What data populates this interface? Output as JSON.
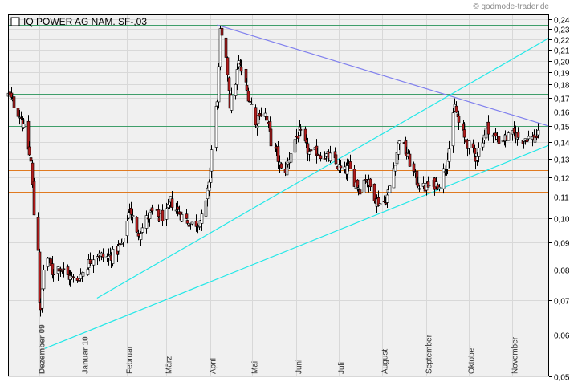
{
  "watermark": "© godmode-trader.de",
  "colors": {
    "background": "#ffffff",
    "plot_area": "#f0f0f0",
    "grid": "#d8d8d8",
    "candle_up": "#ffffff",
    "candle_down": "#b21c1c",
    "candle_outline": "#000000",
    "resistance_line": "#8080ee",
    "trend_line": "#22e8e8",
    "green_level": "#3f9e6a",
    "orange_level": "#e07a20"
  },
  "chart_data": {
    "type": "candlestick",
    "title": "IQ POWER AG NAM.   SF-,03",
    "y_scale": "log",
    "ylim": [
      0.05,
      0.245
    ],
    "y_ticks": [
      0.05,
      0.06,
      0.07,
      0.08,
      0.09,
      0.1,
      0.11,
      0.12,
      0.13,
      0.14,
      0.15,
      0.16,
      0.17,
      0.18,
      0.19,
      0.2,
      0.21,
      0.22,
      0.23,
      0.24
    ],
    "y_tick_labels": [
      "0,05",
      "0,06",
      "0,07",
      "0,08",
      "0,09",
      "0,10",
      "0,11",
      "0,12",
      "0,13",
      "0,14",
      "0,15",
      "0,16",
      "0,17",
      "0,18",
      "0,19",
      "0,20",
      "0,21",
      "0,22",
      "0,23",
      "0,24"
    ],
    "x_start": "2009-11-09",
    "x_end": "2010-11-27",
    "month_labels": [
      {
        "label": "Dezember 09",
        "date": "2009-12-01",
        "bold": true
      },
      {
        "label": "Januar 10",
        "date": "2010-01-01",
        "bold": true
      },
      {
        "label": "Februar",
        "date": "2010-02-01",
        "bold": false
      },
      {
        "label": "März",
        "date": "2010-03-01",
        "bold": false
      },
      {
        "label": "April",
        "date": "2010-04-01",
        "bold": false
      },
      {
        "label": "Mai",
        "date": "2010-05-01",
        "bold": false
      },
      {
        "label": "Juni",
        "date": "2010-06-01",
        "bold": false
      },
      {
        "label": "Juli",
        "date": "2010-07-01",
        "bold": false
      },
      {
        "label": "August",
        "date": "2010-08-01",
        "bold": false
      },
      {
        "label": "September",
        "date": "2010-09-01",
        "bold": false
      },
      {
        "label": "Oktober",
        "date": "2010-10-01",
        "bold": false
      },
      {
        "label": "November",
        "date": "2010-11-01",
        "bold": false
      }
    ],
    "close_path": [
      [
        "2009-11-09",
        0.172
      ],
      [
        "2009-11-13",
        0.165
      ],
      [
        "2009-11-18",
        0.156
      ],
      [
        "2009-11-22",
        0.14
      ],
      [
        "2009-11-25",
        0.128
      ],
      [
        "2009-11-27",
        0.102
      ],
      [
        "2009-11-30",
        0.088
      ],
      [
        "2009-12-01",
        0.07
      ],
      [
        "2009-12-02",
        0.066
      ],
      [
        "2009-12-04",
        0.08
      ],
      [
        "2009-12-07",
        0.084
      ],
      [
        "2009-12-10",
        0.079
      ],
      [
        "2009-12-15",
        0.081
      ],
      [
        "2009-12-20",
        0.078
      ],
      [
        "2009-12-27",
        0.076
      ],
      [
        "2010-01-03",
        0.081
      ],
      [
        "2010-01-10",
        0.086
      ],
      [
        "2010-01-17",
        0.084
      ],
      [
        "2010-01-24",
        0.086
      ],
      [
        "2010-01-29",
        0.09
      ],
      [
        "2010-02-01",
        0.1
      ],
      [
        "2010-02-03",
        0.105
      ],
      [
        "2010-02-06",
        0.098
      ],
      [
        "2010-02-08",
        0.093
      ],
      [
        "2010-02-12",
        0.096
      ],
      [
        "2010-02-16",
        0.101
      ],
      [
        "2010-02-20",
        0.103
      ],
      [
        "2010-02-24",
        0.1
      ],
      [
        "2010-03-01",
        0.102
      ],
      [
        "2010-03-04",
        0.108
      ],
      [
        "2010-03-08",
        0.104
      ],
      [
        "2010-03-12",
        0.101
      ],
      [
        "2010-03-16",
        0.099
      ],
      [
        "2010-03-20",
        0.097
      ],
      [
        "2010-03-24",
        0.099
      ],
      [
        "2010-03-28",
        0.101
      ],
      [
        "2010-03-30",
        0.112
      ],
      [
        "2010-04-01",
        0.125
      ],
      [
        "2010-04-03",
        0.145
      ],
      [
        "2010-04-06",
        0.17
      ],
      [
        "2010-04-07",
        0.192
      ],
      [
        "2010-04-08",
        0.225
      ],
      [
        "2010-04-10",
        0.215
      ],
      [
        "2010-04-13",
        0.19
      ],
      [
        "2010-04-15",
        0.165
      ],
      [
        "2010-04-18",
        0.175
      ],
      [
        "2010-04-21",
        0.198
      ],
      [
        "2010-04-24",
        0.188
      ],
      [
        "2010-04-27",
        0.175
      ],
      [
        "2010-04-30",
        0.165
      ],
      [
        "2010-05-03",
        0.15
      ],
      [
        "2010-05-06",
        0.16
      ],
      [
        "2010-05-10",
        0.158
      ],
      [
        "2010-05-14",
        0.14
      ],
      [
        "2010-05-18",
        0.133
      ],
      [
        "2010-05-22",
        0.12
      ],
      [
        "2010-05-26",
        0.128
      ],
      [
        "2010-05-30",
        0.14
      ],
      [
        "2010-06-03",
        0.146
      ],
      [
        "2010-06-07",
        0.138
      ],
      [
        "2010-06-11",
        0.132
      ],
      [
        "2010-06-15",
        0.134
      ],
      [
        "2010-06-20",
        0.132
      ],
      [
        "2010-06-25",
        0.131
      ],
      [
        "2010-06-30",
        0.126
      ],
      [
        "2010-07-04",
        0.122
      ],
      [
        "2010-07-08",
        0.125
      ],
      [
        "2010-07-12",
        0.118
      ],
      [
        "2010-07-16",
        0.114
      ],
      [
        "2010-07-20",
        0.12
      ],
      [
        "2010-07-24",
        0.113
      ],
      [
        "2010-07-28",
        0.108
      ],
      [
        "2010-08-01",
        0.106
      ],
      [
        "2010-08-05",
        0.112
      ],
      [
        "2010-08-09",
        0.125
      ],
      [
        "2010-08-13",
        0.143
      ],
      [
        "2010-08-17",
        0.134
      ],
      [
        "2010-08-21",
        0.126
      ],
      [
        "2010-08-25",
        0.118
      ],
      [
        "2010-08-29",
        0.114
      ],
      [
        "2010-09-02",
        0.115
      ],
      [
        "2010-09-06",
        0.116
      ],
      [
        "2010-09-10",
        0.117
      ],
      [
        "2010-09-14",
        0.125
      ],
      [
        "2010-09-18",
        0.14
      ],
      [
        "2010-09-21",
        0.163
      ],
      [
        "2010-09-24",
        0.152
      ],
      [
        "2010-09-28",
        0.142
      ],
      [
        "2010-10-02",
        0.136
      ],
      [
        "2010-10-06",
        0.131
      ],
      [
        "2010-10-10",
        0.14
      ],
      [
        "2010-10-14",
        0.15
      ],
      [
        "2010-10-18",
        0.144
      ],
      [
        "2010-10-22",
        0.141
      ],
      [
        "2010-10-26",
        0.142
      ],
      [
        "2010-10-30",
        0.143
      ],
      [
        "2010-11-03",
        0.145
      ],
      [
        "2010-11-07",
        0.141
      ],
      [
        "2010-11-11",
        0.143
      ],
      [
        "2010-11-15",
        0.142
      ],
      [
        "2010-11-19",
        0.144
      ]
    ],
    "horizontal_levels": [
      {
        "value": 0.234,
        "kind": "green_level"
      },
      {
        "value": 0.173,
        "kind": "green_level"
      },
      {
        "value": 0.15,
        "kind": "green_level"
      },
      {
        "value": 0.1235,
        "kind": "orange_level"
      },
      {
        "value": 0.1125,
        "kind": "orange_level"
      },
      {
        "value": 0.1025,
        "kind": "orange_level"
      }
    ],
    "trend_lines": [
      {
        "kind": "resistance_line",
        "from": [
          "2010-04-06",
          0.234
        ],
        "to": [
          "2010-11-27",
          0.15
        ]
      },
      {
        "kind": "trend_line",
        "from": [
          "2010-01-11",
          0.0705
        ],
        "to": [
          "2010-11-27",
          0.221
        ]
      },
      {
        "kind": "trend_line",
        "from": [
          "2009-12-05",
          0.0565
        ],
        "to": [
          "2010-11-27",
          0.138
        ]
      }
    ]
  }
}
